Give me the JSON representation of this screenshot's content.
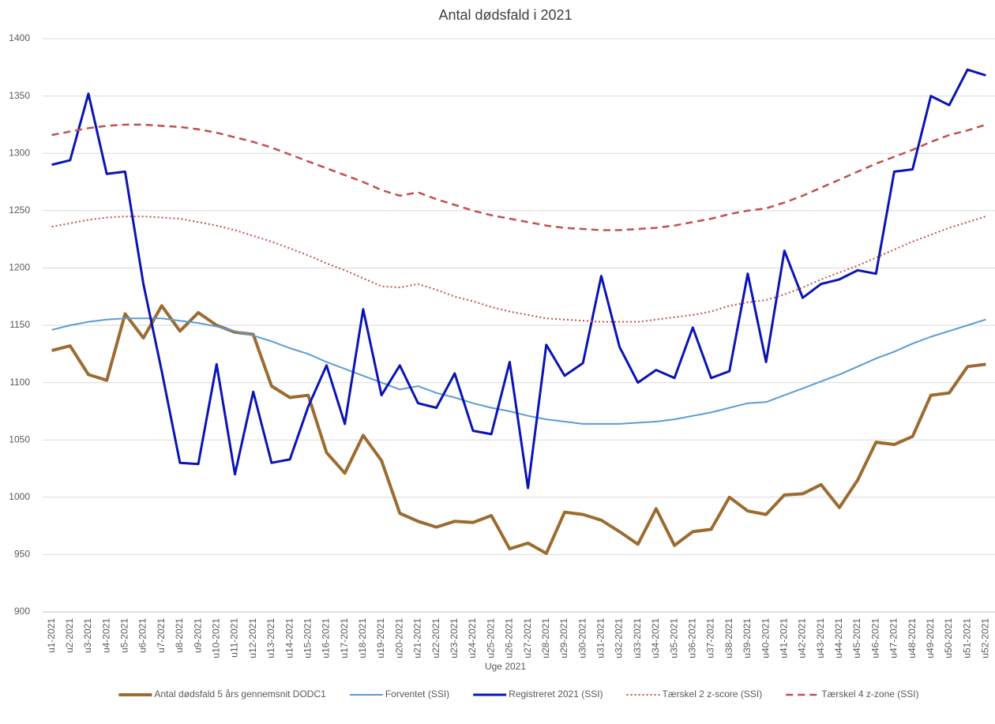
{
  "chart_data": {
    "type": "line",
    "title": "Antal dødsfald i 2021",
    "x_label": "Uge 2021",
    "categories": [
      "u1-2021",
      "u2-2021",
      "u3-2021",
      "u4-2021",
      "u5-2021",
      "u6-2021",
      "u7-2021",
      "u8-2021",
      "u9-2021",
      "u10-2021",
      "u11-2021",
      "u12-2021",
      "u13-2021",
      "u14-2021",
      "u15-2021",
      "u16-2021",
      "u17-2021",
      "u18-2021",
      "u19-2021",
      "u20-2021",
      "u21-2021",
      "u22-2021",
      "u23-2021",
      "u24-2021",
      "u25-2021",
      "u26-2021",
      "u27-2021",
      "u28-2021",
      "u29-2021",
      "u30-2021",
      "u31-2021",
      "u32-2021",
      "u33-2021",
      "u34-2021",
      "u35-2021",
      "u36-2021",
      "u37-2021",
      "u38-2021",
      "u39-2021",
      "u40-2021",
      "u41-2021",
      "u42-2021",
      "u43-2021",
      "u44-2021",
      "u45-2021",
      "u46-2021",
      "u47-2021",
      "u48-2021",
      "u49-2021",
      "u50-2021",
      "u51-2021",
      "u52-2021"
    ],
    "series": [
      {
        "name": "Antal dødsfald 5 års gennemsnit DODC1",
        "color": "#9c6b30",
        "width": 4,
        "dash": "solid",
        "values": [
          1128,
          1132,
          1107,
          1102,
          1160,
          1139,
          1167,
          1145,
          1161,
          1150,
          1144,
          1142,
          1097,
          1087,
          1089,
          1039,
          1021,
          1054,
          1032,
          986,
          979,
          974,
          979,
          978,
          984,
          955,
          960,
          951,
          987,
          985,
          980,
          970,
          959,
          990,
          958,
          970,
          972,
          1000,
          988,
          985,
          1002,
          1003,
          1011,
          991,
          1015,
          1048,
          1046,
          1053,
          1089,
          1091,
          1114,
          1116
        ]
      },
      {
        "name": "Forventet (SSI)",
        "color": "#5b9bd5",
        "width": 2,
        "dash": "solid",
        "values": [
          1146,
          1150,
          1153,
          1155,
          1156,
          1156,
          1156,
          1154,
          1152,
          1149,
          1145,
          1141,
          1136,
          1130,
          1125,
          1118,
          1112,
          1106,
          1100,
          1094,
          1097,
          1091,
          1087,
          1082,
          1078,
          1075,
          1071,
          1068,
          1066,
          1064,
          1064,
          1064,
          1065,
          1066,
          1068,
          1071,
          1074,
          1078,
          1082,
          1083,
          1089,
          1095,
          1101,
          1107,
          1114,
          1121,
          1127,
          1134,
          1140,
          1145,
          1150,
          1155
        ]
      },
      {
        "name": "Registreret 2021 (SSI)",
        "color": "#0a14b4",
        "width": 3,
        "dash": "solid",
        "values": [
          1290,
          1294,
          1352,
          1282,
          1284,
          1186,
          1110,
          1030,
          1029,
          1116,
          1020,
          1092,
          1030,
          1033,
          1079,
          1115,
          1064,
          1164,
          1089,
          1115,
          1082,
          1078,
          1108,
          1058,
          1055,
          1118,
          1008,
          1133,
          1106,
          1117,
          1193,
          1131,
          1100,
          1111,
          1104,
          1148,
          1104,
          1110,
          1195,
          1118,
          1215,
          1174,
          1186,
          1190,
          1198,
          1195,
          1284,
          1286,
          1350,
          1342,
          1373,
          1368
        ]
      },
      {
        "name": "Tærskel 2 z-score (SSI)",
        "color": "#c0504d",
        "width": 2,
        "dash": "dotted",
        "values": [
          1236,
          1239,
          1242,
          1244,
          1245,
          1245,
          1244,
          1243,
          1240,
          1237,
          1233,
          1228,
          1223,
          1217,
          1211,
          1204,
          1198,
          1191,
          1184,
          1183,
          1186,
          1181,
          1175,
          1171,
          1166,
          1162,
          1159,
          1156,
          1155,
          1154,
          1153,
          1153,
          1153,
          1155,
          1157,
          1159,
          1162,
          1167,
          1170,
          1172,
          1177,
          1183,
          1190,
          1196,
          1202,
          1209,
          1216,
          1223,
          1229,
          1235,
          1240,
          1245
        ]
      },
      {
        "name": "Tærskel 4 z-zone (SSI)",
        "color": "#c0504d",
        "width": 2.5,
        "dash": "dashed",
        "values": [
          1316,
          1319,
          1322,
          1324,
          1325,
          1325,
          1324,
          1323,
          1321,
          1318,
          1314,
          1310,
          1305,
          1299,
          1293,
          1287,
          1281,
          1275,
          1268,
          1263,
          1266,
          1260,
          1255,
          1250,
          1246,
          1243,
          1240,
          1237,
          1235,
          1234,
          1233,
          1233,
          1234,
          1235,
          1237,
          1240,
          1243,
          1247,
          1250,
          1252,
          1257,
          1263,
          1270,
          1277,
          1284,
          1291,
          1297,
          1303,
          1310,
          1316,
          1320,
          1325
        ]
      }
    ],
    "ylim": [
      900,
      1400
    ],
    "yticks": [
      900,
      950,
      1000,
      1050,
      1100,
      1150,
      1200,
      1250,
      1300,
      1350,
      1400
    ],
    "grid": true,
    "legend": "bottom"
  }
}
